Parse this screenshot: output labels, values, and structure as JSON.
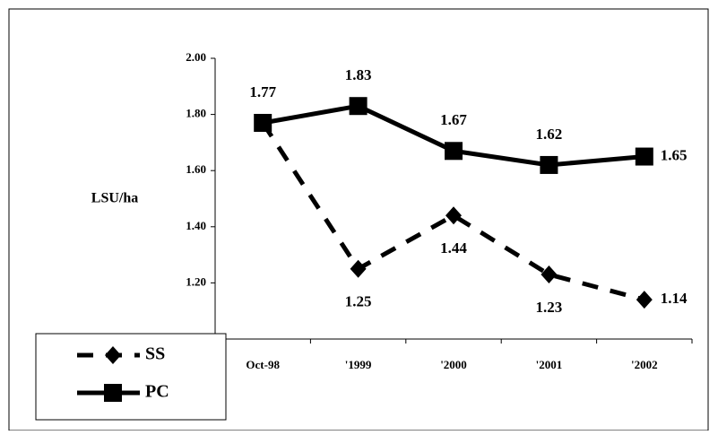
{
  "chart_data": {
    "type": "line",
    "y_label": "LSU/ha",
    "categories": [
      "Oct-98",
      "'1999",
      "'2000",
      "'2001",
      "'2002"
    ],
    "series": [
      {
        "name": "SS",
        "color": "#000000",
        "dash": true,
        "marker": "diamond",
        "values": [
          1.77,
          1.25,
          1.44,
          1.23,
          1.14
        ]
      },
      {
        "name": "PC",
        "color": "#000000",
        "dash": false,
        "marker": "square",
        "values": [
          1.77,
          1.83,
          1.67,
          1.62,
          1.65
        ]
      }
    ],
    "ylim": [
      1.0,
      2.0
    ],
    "yticks": [
      {
        "value": 1.2,
        "label": "1.20"
      },
      {
        "value": 1.4,
        "label": "1.40"
      },
      {
        "value": 1.6,
        "label": "1.60"
      },
      {
        "value": 1.8,
        "label": "1.80"
      },
      {
        "value": 2.0,
        "label": "2.00"
      }
    ],
    "legend": "bottom-left"
  }
}
